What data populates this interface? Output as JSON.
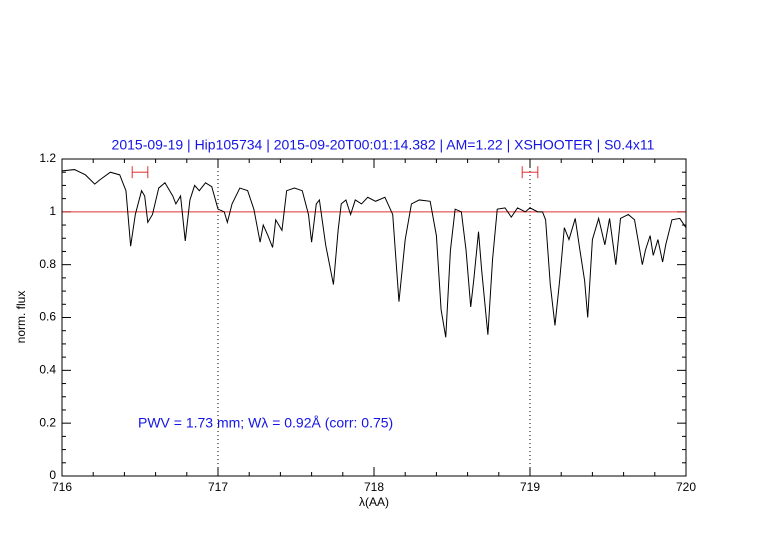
{
  "chart_data": {
    "type": "line",
    "title": "2015-09-19 | Hip105734 | 2015-09-20T00:01:14.382 | AM=1.22 | XSHOOTER | S0.4x11",
    "xlabel": "λ(AA)",
    "ylabel": "norm. flux",
    "annotation": "PWV = 1.73 mm; Wλ = 0.92Å (corr: 0.75)",
    "xlim": [
      716,
      720
    ],
    "ylim": [
      0,
      1.2
    ],
    "xticks": [
      716,
      717,
      718,
      719,
      720
    ],
    "yticks": [
      0,
      0.2,
      0.4,
      0.6,
      0.8,
      1,
      1.2
    ],
    "reference_line": {
      "y": 1,
      "color": "#e03030"
    },
    "vlines": [
      717,
      719
    ],
    "intervals": {
      "color": "#e03030",
      "y": 1.15,
      "ranges": [
        [
          716.45,
          716.55
        ],
        [
          718.95,
          719.05
        ]
      ]
    },
    "x": [
      716.0,
      716.08,
      716.15,
      716.21,
      716.24,
      716.31,
      716.37,
      716.41,
      716.44,
      716.47,
      716.51,
      716.53,
      716.55,
      716.58,
      716.62,
      716.66,
      716.71,
      716.73,
      716.76,
      716.79,
      716.82,
      716.85,
      716.88,
      716.92,
      716.96,
      717.0,
      717.04,
      717.06,
      717.09,
      717.14,
      717.19,
      717.23,
      717.27,
      717.29,
      717.32,
      717.35,
      717.37,
      717.41,
      717.44,
      717.49,
      717.54,
      717.58,
      717.6,
      717.63,
      717.65,
      717.69,
      717.74,
      717.77,
      717.79,
      717.82,
      717.85,
      717.88,
      717.92,
      717.96,
      718.01,
      718.07,
      718.12,
      718.16,
      718.2,
      718.24,
      718.29,
      718.36,
      718.4,
      718.43,
      718.46,
      718.49,
      718.52,
      718.56,
      718.59,
      718.62,
      718.64,
      718.67,
      718.69,
      718.73,
      718.76,
      718.79,
      718.84,
      718.88,
      718.92,
      718.97,
      719.0,
      719.05,
      719.08,
      719.1,
      719.13,
      719.16,
      719.19,
      719.22,
      719.25,
      719.29,
      719.32,
      719.35,
      719.37,
      719.4,
      719.44,
      719.48,
      719.51,
      719.55,
      719.58,
      719.63,
      719.67,
      719.72,
      719.74,
      719.77,
      719.79,
      719.82,
      719.85,
      719.87,
      719.91,
      719.96,
      720.0
    ],
    "series": [
      {
        "name": "flux",
        "color": "#000000",
        "values": [
          1.155,
          1.16,
          1.14,
          1.105,
          1.12,
          1.15,
          1.14,
          1.08,
          0.87,
          0.99,
          1.08,
          1.06,
          0.96,
          0.99,
          1.09,
          1.11,
          1.06,
          1.03,
          1.06,
          0.89,
          1.045,
          1.1,
          1.08,
          1.11,
          1.095,
          1.01,
          1.0,
          0.96,
          1.03,
          1.09,
          1.08,
          1.01,
          0.885,
          0.95,
          0.91,
          0.865,
          0.97,
          0.93,
          1.08,
          1.09,
          1.08,
          0.99,
          0.885,
          1.03,
          1.045,
          0.875,
          0.725,
          0.93,
          1.03,
          1.045,
          0.99,
          1.045,
          1.03,
          1.055,
          1.04,
          1.055,
          0.99,
          0.66,
          0.895,
          1.03,
          1.045,
          1.04,
          0.91,
          0.63,
          0.525,
          0.855,
          1.01,
          1.0,
          0.855,
          0.64,
          0.745,
          0.925,
          0.78,
          0.535,
          0.82,
          1.01,
          1.015,
          0.98,
          1.015,
          1.0,
          1.015,
          1.0,
          1.0,
          0.97,
          0.725,
          0.57,
          0.74,
          0.94,
          0.895,
          0.975,
          0.855,
          0.74,
          0.6,
          0.895,
          0.975,
          0.875,
          0.975,
          0.8,
          0.975,
          0.99,
          0.97,
          0.8,
          0.855,
          0.91,
          0.835,
          0.895,
          0.81,
          0.875,
          0.97,
          0.975,
          0.94
        ]
      }
    ]
  }
}
